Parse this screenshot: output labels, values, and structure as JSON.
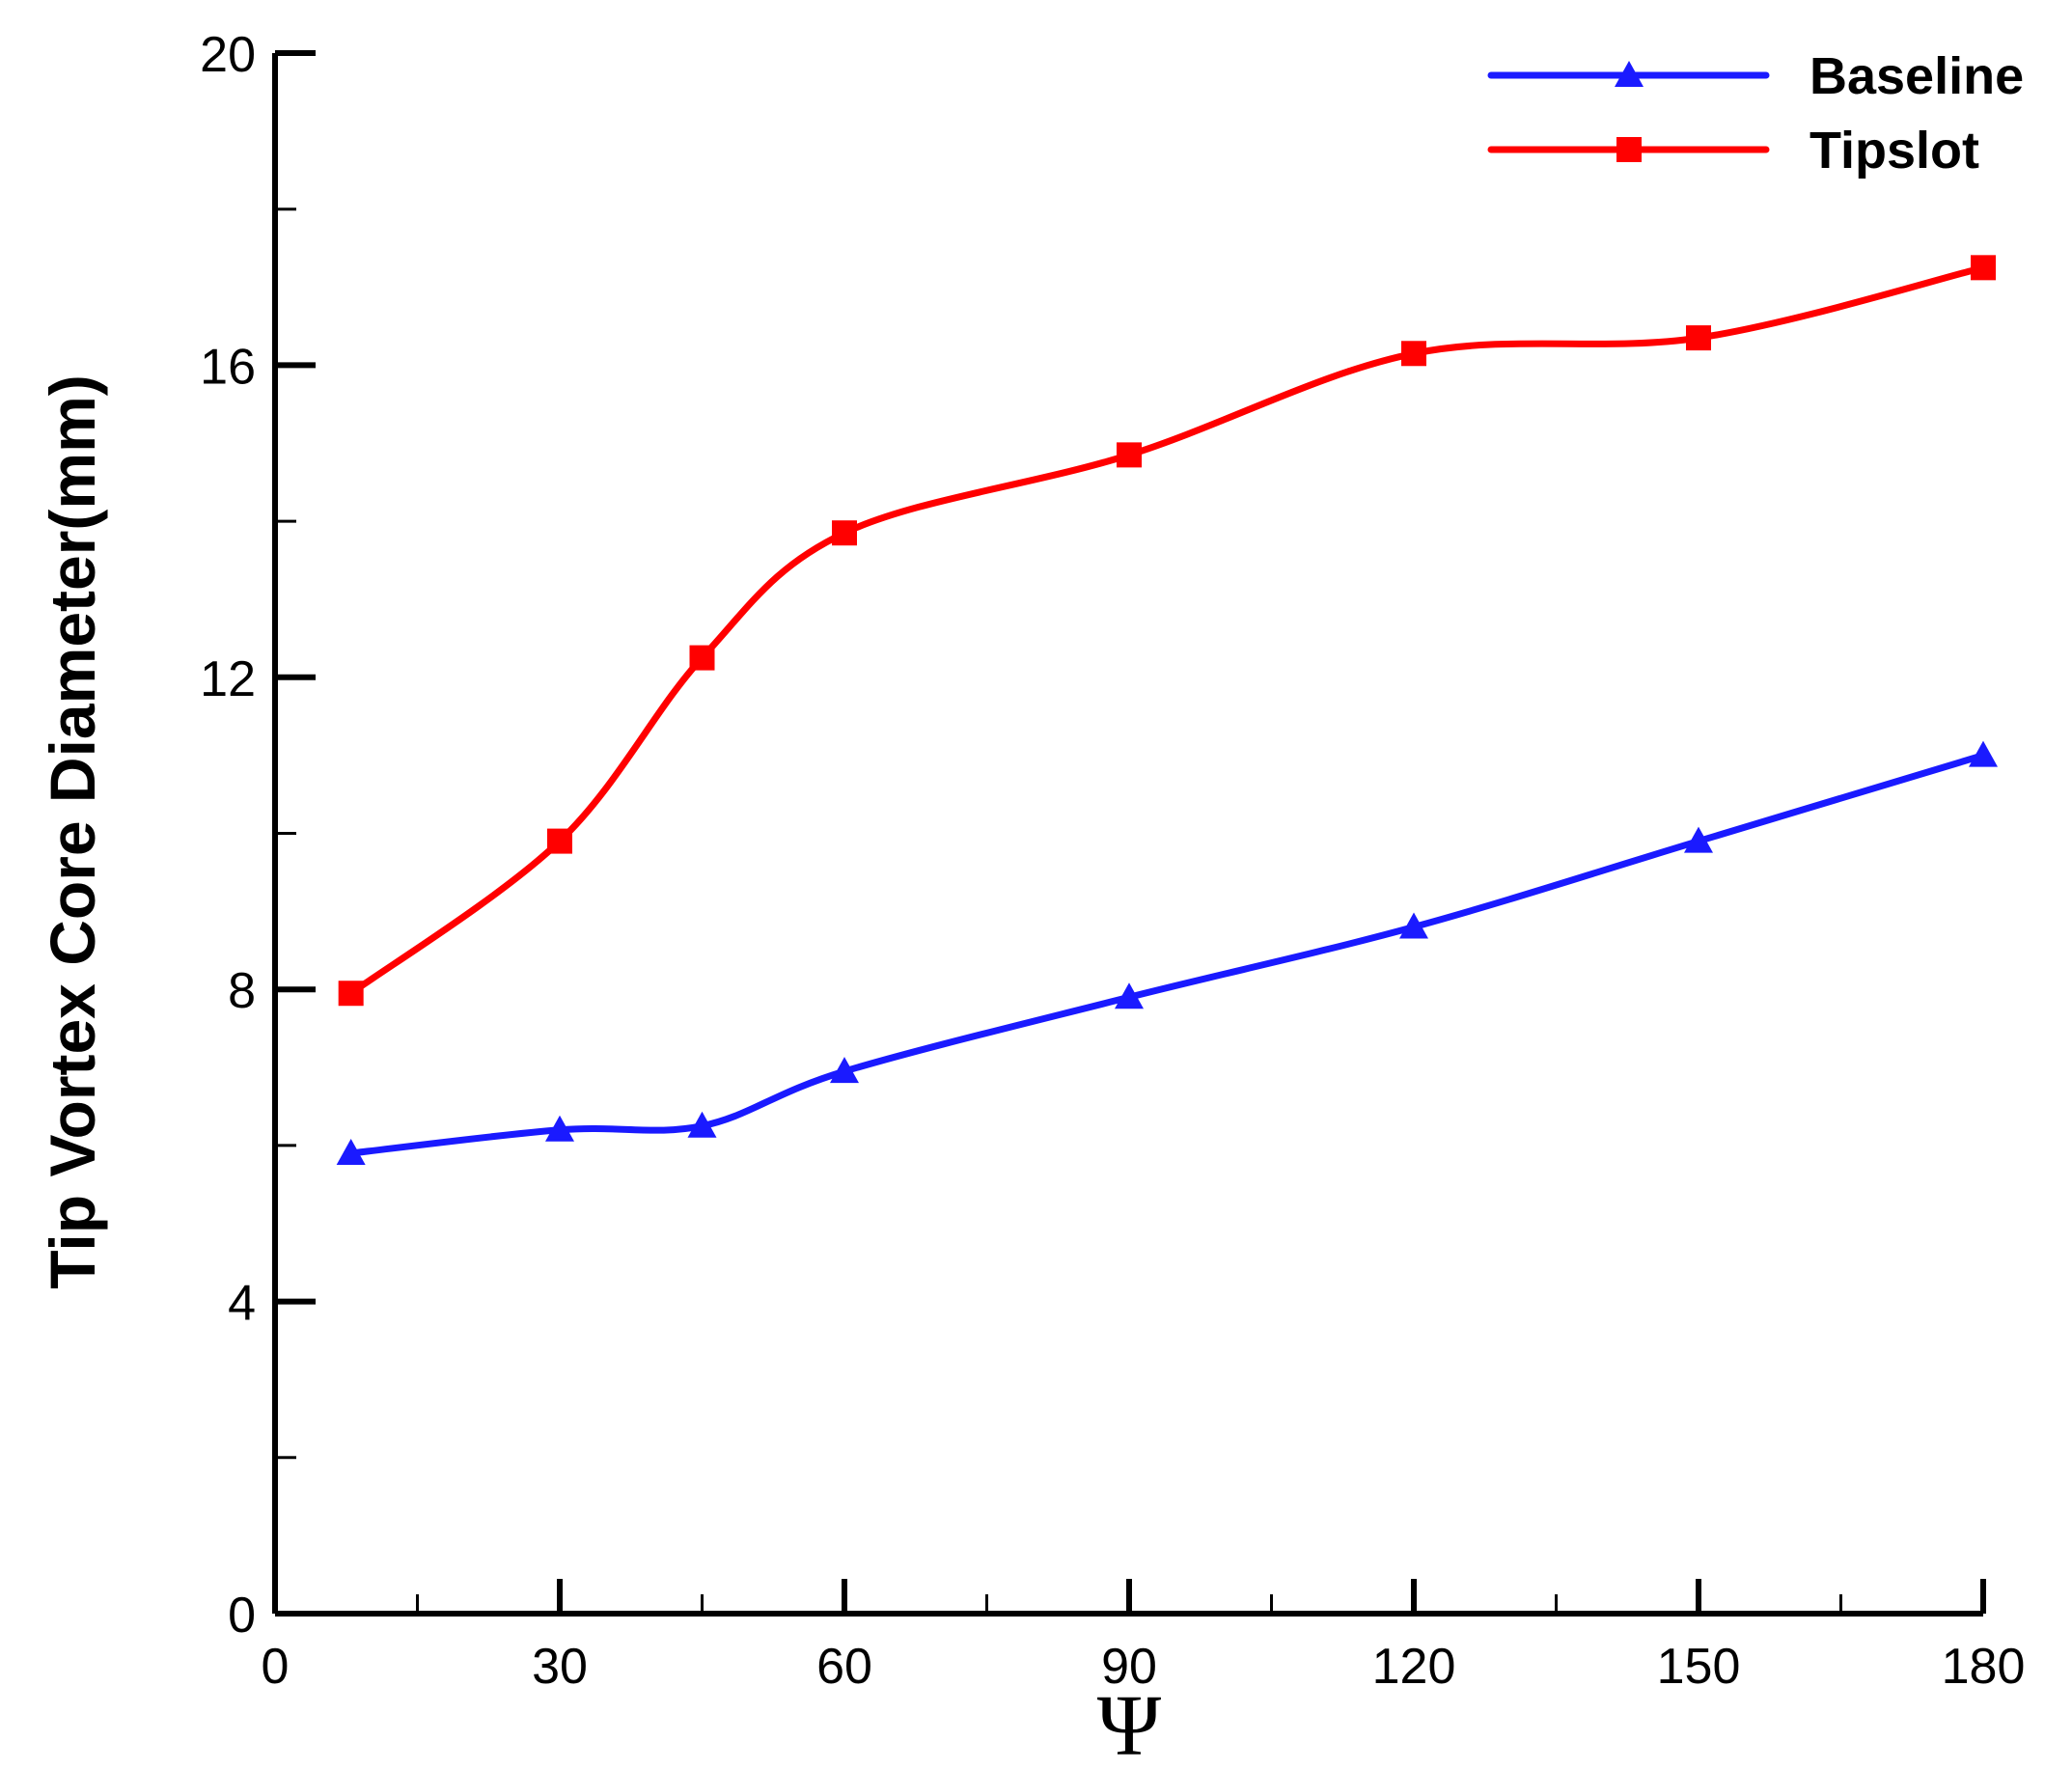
{
  "chart_data": {
    "type": "line",
    "xlabel": "Ψ",
    "ylabel": "Tip Vortex Core Diameter(mm)",
    "xlim": [
      0,
      180
    ],
    "ylim": [
      0,
      20
    ],
    "x_ticks": [
      0,
      30,
      60,
      90,
      120,
      150,
      180
    ],
    "y_ticks": [
      0,
      4,
      8,
      12,
      16,
      20
    ],
    "grid": false,
    "legend_position": "top-right",
    "series": [
      {
        "name": "Baseline",
        "color": "#1a1aff",
        "marker": "triangle",
        "x": [
          8,
          30,
          45,
          60,
          90,
          120,
          150,
          180
        ],
        "y": [
          5.9,
          6.2,
          6.25,
          6.95,
          7.9,
          8.8,
          9.9,
          11.0
        ]
      },
      {
        "name": "Tipslot",
        "color": "#ff0000",
        "marker": "square",
        "x": [
          8,
          30,
          45,
          60,
          90,
          120,
          150,
          180
        ],
        "y": [
          7.95,
          9.9,
          12.25,
          13.85,
          14.85,
          16.15,
          16.35,
          17.25
        ]
      }
    ]
  }
}
